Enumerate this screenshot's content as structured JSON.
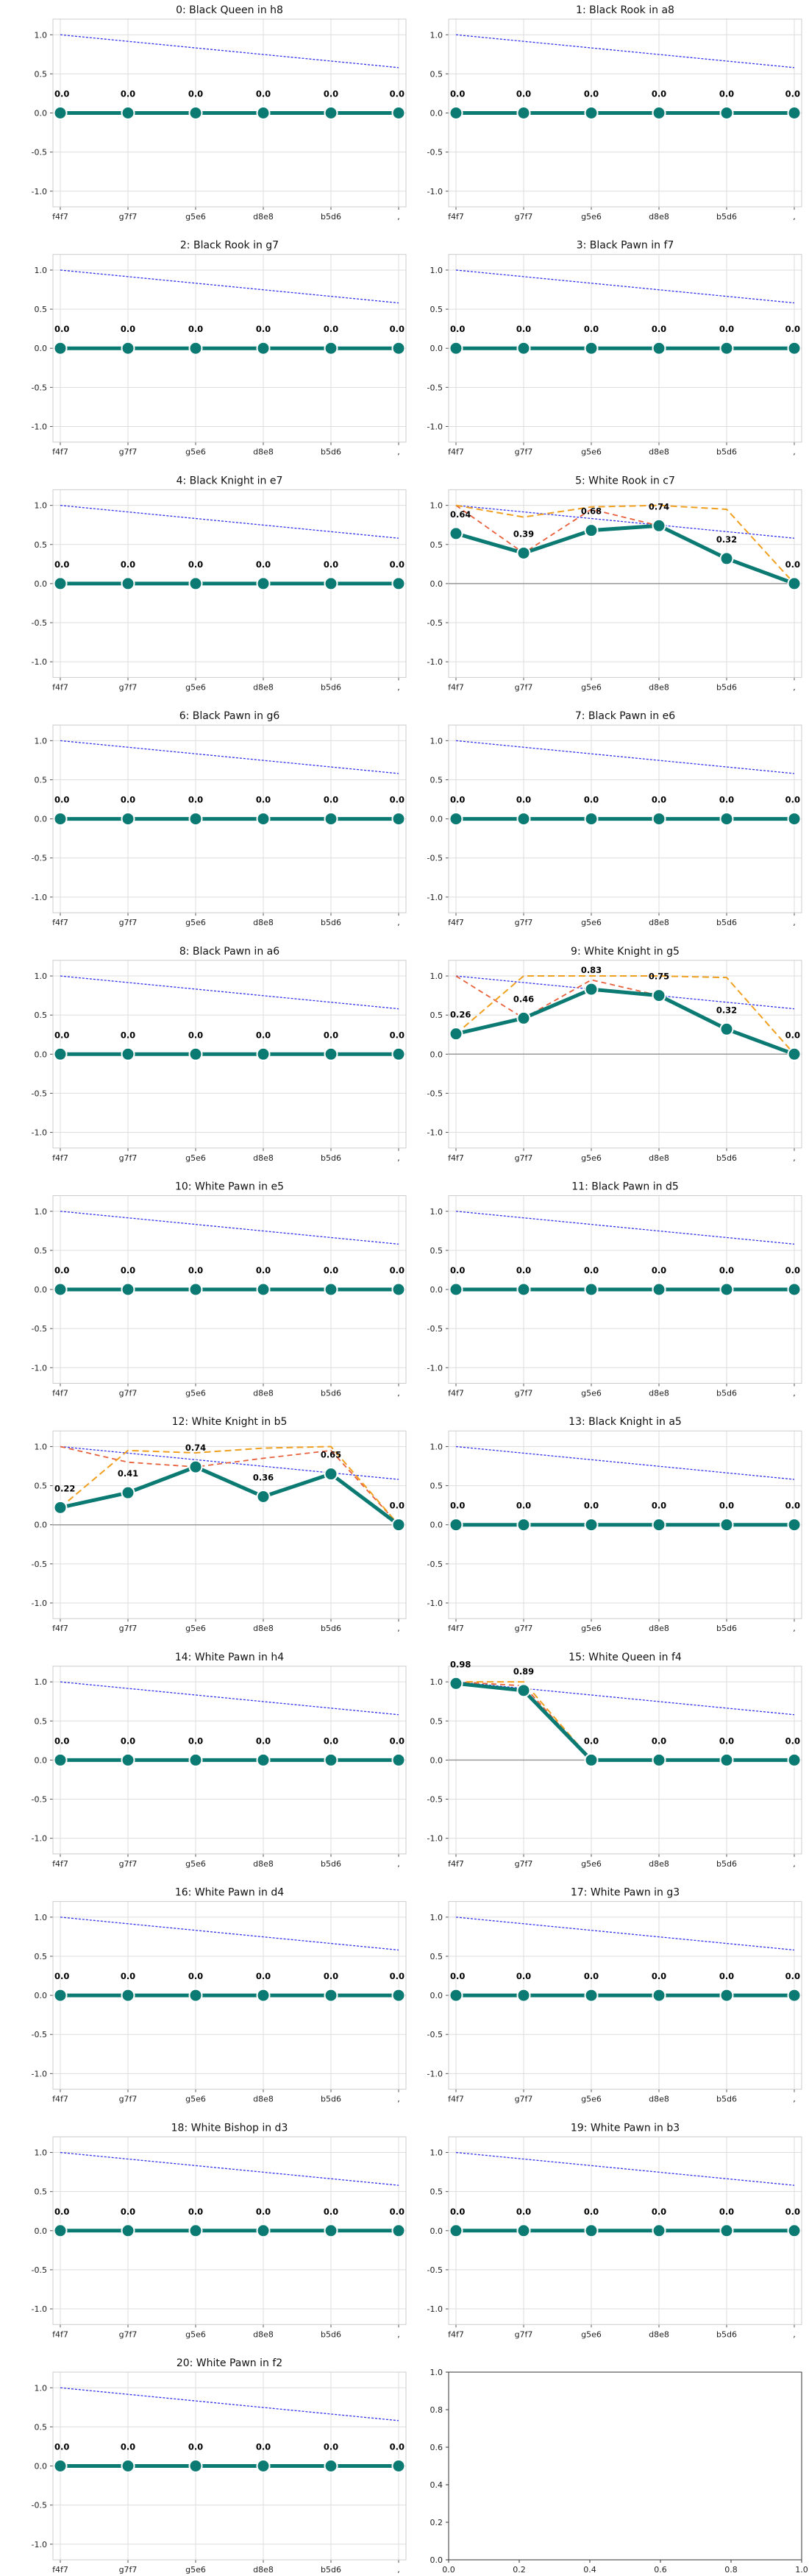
{
  "figure": {
    "empty_panel": {
      "xticks": [
        "0.0",
        "0.2",
        "0.4",
        "0.6",
        "0.8",
        "1.0"
      ],
      "yticks": [
        "0.0",
        "0.2",
        "0.4",
        "0.6",
        "0.8",
        "1.0"
      ]
    }
  },
  "chart_data": [
    {
      "type": "line",
      "title": "0: Black Queen in h8",
      "categories": [
        "f4f7",
        "g7f7",
        "g5e6",
        "d8e8",
        "b5d6",
        ","
      ],
      "ylim": [
        -1.2,
        1.2
      ],
      "yticks": [
        "1.0",
        "0.5",
        "0.0",
        "-0.5",
        "-1.0"
      ],
      "grid": true,
      "values": [
        0.0,
        0.0,
        0.0,
        0.0,
        0.0,
        0.0
      ],
      "labels": [
        "0.0",
        "0.0",
        "0.0",
        "0.0",
        "0.0",
        "0.0"
      ],
      "reference_line": [
        1.0,
        0.58
      ]
    },
    {
      "type": "line",
      "title": "1: Black Rook in a8",
      "categories": [
        "f4f7",
        "g7f7",
        "g5e6",
        "d8e8",
        "b5d6",
        ","
      ],
      "ylim": [
        -1.2,
        1.2
      ],
      "yticks": [
        "1.0",
        "0.5",
        "0.0",
        "-0.5",
        "-1.0"
      ],
      "grid": true,
      "values": [
        0.0,
        0.0,
        0.0,
        0.0,
        0.0,
        0.0
      ],
      "labels": [
        "0.0",
        "0.0",
        "0.0",
        "0.0",
        "0.0",
        "0.0"
      ],
      "reference_line": [
        1.0,
        0.58
      ]
    },
    {
      "type": "line",
      "title": "2: Black Rook in g7",
      "categories": [
        "f4f7",
        "g7f7",
        "g5e6",
        "d8e8",
        "b5d6",
        ","
      ],
      "ylim": [
        -1.2,
        1.2
      ],
      "yticks": [
        "1.0",
        "0.5",
        "0.0",
        "-0.5",
        "-1.0"
      ],
      "grid": true,
      "values": [
        0.0,
        0.0,
        0.0,
        0.0,
        0.0,
        0.0
      ],
      "labels": [
        "0.0",
        "0.0",
        "0.0",
        "0.0",
        "0.0",
        "0.0"
      ],
      "reference_line": [
        1.0,
        0.58
      ]
    },
    {
      "type": "line",
      "title": "3: Black Pawn in f7",
      "categories": [
        "f4f7",
        "g7f7",
        "g5e6",
        "d8e8",
        "b5d6",
        ","
      ],
      "ylim": [
        -1.2,
        1.2
      ],
      "yticks": [
        "1.0",
        "0.5",
        "0.0",
        "-0.5",
        "-1.0"
      ],
      "grid": true,
      "values": [
        0.0,
        0.0,
        0.0,
        0.0,
        0.0,
        0.0
      ],
      "labels": [
        "0.0",
        "0.0",
        "0.0",
        "0.0",
        "0.0",
        "0.0"
      ],
      "reference_line": [
        1.0,
        0.58
      ]
    },
    {
      "type": "line",
      "title": "4: Black Knight in e7",
      "categories": [
        "f4f7",
        "g7f7",
        "g5e6",
        "d8e8",
        "b5d6",
        ","
      ],
      "ylim": [
        -1.2,
        1.2
      ],
      "yticks": [
        "1.0",
        "0.5",
        "0.0",
        "-0.5",
        "-1.0"
      ],
      "grid": true,
      "values": [
        0.0,
        0.0,
        0.0,
        0.0,
        0.0,
        0.0
      ],
      "labels": [
        "0.0",
        "0.0",
        "0.0",
        "0.0",
        "0.0",
        "0.0"
      ],
      "reference_line": [
        1.0,
        0.58
      ]
    },
    {
      "type": "line",
      "title": "5: White Rook in c7",
      "categories": [
        "f4f7",
        "g7f7",
        "g5e6",
        "d8e8",
        "b5d6",
        ","
      ],
      "ylim": [
        -1.2,
        1.2
      ],
      "yticks": [
        "1.0",
        "0.5",
        "0.0",
        "-0.5",
        "-1.0"
      ],
      "grid": true,
      "values": [
        0.64,
        0.39,
        0.68,
        0.74,
        0.32,
        0.0
      ],
      "labels": [
        "0.64",
        "0.39",
        "0.68",
        "0.74",
        "0.32",
        "0.0"
      ],
      "reference_line": [
        1.0,
        0.58
      ],
      "red_dashed": [
        1.0,
        0.39,
        0.95,
        0.74,
        0.32,
        0.0
      ],
      "orange_dashed": [
        1.0,
        0.85,
        0.98,
        1.0,
        0.95,
        0.0
      ]
    },
    {
      "type": "line",
      "title": "6: Black Pawn in g6",
      "categories": [
        "f4f7",
        "g7f7",
        "g5e6",
        "d8e8",
        "b5d6",
        ","
      ],
      "ylim": [
        -1.2,
        1.2
      ],
      "yticks": [
        "1.0",
        "0.5",
        "0.0",
        "-0.5",
        "-1.0"
      ],
      "grid": true,
      "values": [
        0.0,
        0.0,
        0.0,
        0.0,
        0.0,
        0.0
      ],
      "labels": [
        "0.0",
        "0.0",
        "0.0",
        "0.0",
        "0.0",
        "0.0"
      ],
      "reference_line": [
        1.0,
        0.58
      ]
    },
    {
      "type": "line",
      "title": "7: Black Pawn in e6",
      "categories": [
        "f4f7",
        "g7f7",
        "g5e6",
        "d8e8",
        "b5d6",
        ","
      ],
      "ylim": [
        -1.2,
        1.2
      ],
      "yticks": [
        "1.0",
        "0.5",
        "0.0",
        "-0.5",
        "-1.0"
      ],
      "grid": true,
      "values": [
        0.0,
        0.0,
        0.0,
        0.0,
        0.0,
        0.0
      ],
      "labels": [
        "0.0",
        "0.0",
        "0.0",
        "0.0",
        "0.0",
        "0.0"
      ],
      "reference_line": [
        1.0,
        0.58
      ]
    },
    {
      "type": "line",
      "title": "8: Black Pawn in a6",
      "categories": [
        "f4f7",
        "g7f7",
        "g5e6",
        "d8e8",
        "b5d6",
        ","
      ],
      "ylim": [
        -1.2,
        1.2
      ],
      "yticks": [
        "1.0",
        "0.5",
        "0.0",
        "-0.5",
        "-1.0"
      ],
      "grid": true,
      "values": [
        0.0,
        0.0,
        0.0,
        0.0,
        0.0,
        0.0
      ],
      "labels": [
        "0.0",
        "0.0",
        "0.0",
        "0.0",
        "0.0",
        "0.0"
      ],
      "reference_line": [
        1.0,
        0.58
      ]
    },
    {
      "type": "line",
      "title": "9: White Knight in g5",
      "categories": [
        "f4f7",
        "g7f7",
        "g5e6",
        "d8e8",
        "b5d6",
        ","
      ],
      "ylim": [
        -1.2,
        1.2
      ],
      "yticks": [
        "1.0",
        "0.5",
        "0.0",
        "-0.5",
        "-1.0"
      ],
      "grid": true,
      "values": [
        0.26,
        0.46,
        0.83,
        0.75,
        0.32,
        0.0
      ],
      "labels": [
        "0.26",
        "0.46",
        "0.83",
        "0.75",
        "0.32",
        "0.0"
      ],
      "reference_line": [
        1.0,
        0.58
      ],
      "red_dashed": [
        1.0,
        0.46,
        0.95,
        0.75,
        0.32,
        0.0
      ],
      "orange_dashed": [
        0.26,
        1.0,
        1.0,
        1.0,
        0.98,
        0.0
      ]
    },
    {
      "type": "line",
      "title": "10: White Pawn in e5",
      "categories": [
        "f4f7",
        "g7f7",
        "g5e6",
        "d8e8",
        "b5d6",
        ","
      ],
      "ylim": [
        -1.2,
        1.2
      ],
      "yticks": [
        "1.0",
        "0.5",
        "0.0",
        "-0.5",
        "-1.0"
      ],
      "grid": true,
      "values": [
        0.0,
        0.0,
        0.0,
        0.0,
        0.0,
        0.0
      ],
      "labels": [
        "0.0",
        "0.0",
        "0.0",
        "0.0",
        "0.0",
        "0.0"
      ],
      "reference_line": [
        1.0,
        0.58
      ]
    },
    {
      "type": "line",
      "title": "11: Black Pawn in d5",
      "categories": [
        "f4f7",
        "g7f7",
        "g5e6",
        "d8e8",
        "b5d6",
        ","
      ],
      "ylim": [
        -1.2,
        1.2
      ],
      "yticks": [
        "1.0",
        "0.5",
        "0.0",
        "-0.5",
        "-1.0"
      ],
      "grid": true,
      "values": [
        0.0,
        0.0,
        0.0,
        0.0,
        0.0,
        0.0
      ],
      "labels": [
        "0.0",
        "0.0",
        "0.0",
        "0.0",
        "0.0",
        "0.0"
      ],
      "reference_line": [
        1.0,
        0.58
      ]
    },
    {
      "type": "line",
      "title": "12: White Knight in b5",
      "categories": [
        "f4f7",
        "g7f7",
        "g5e6",
        "d8e8",
        "b5d6",
        ","
      ],
      "ylim": [
        -1.2,
        1.2
      ],
      "yticks": [
        "1.0",
        "0.5",
        "0.0",
        "-0.5",
        "-1.0"
      ],
      "grid": true,
      "values": [
        0.22,
        0.41,
        0.74,
        0.36,
        0.65,
        0.0
      ],
      "labels": [
        "0.22",
        "0.41",
        "0.74",
        "0.36",
        "0.65",
        "0.0"
      ],
      "reference_line": [
        1.0,
        0.58
      ],
      "red_dashed": [
        1.0,
        0.8,
        0.74,
        0.85,
        0.95,
        0.0
      ],
      "orange_dashed": [
        0.22,
        0.95,
        0.92,
        0.98,
        1.0,
        0.0
      ]
    },
    {
      "type": "line",
      "title": "13: Black Knight in a5",
      "categories": [
        "f4f7",
        "g7f7",
        "g5e6",
        "d8e8",
        "b5d6",
        ","
      ],
      "ylim": [
        -1.2,
        1.2
      ],
      "yticks": [
        "1.0",
        "0.5",
        "0.0",
        "-0.5",
        "-1.0"
      ],
      "grid": true,
      "values": [
        0.0,
        0.0,
        0.0,
        0.0,
        0.0,
        0.0
      ],
      "labels": [
        "0.0",
        "0.0",
        "0.0",
        "0.0",
        "0.0",
        "0.0"
      ],
      "reference_line": [
        1.0,
        0.58
      ]
    },
    {
      "type": "line",
      "title": "14: White Pawn in h4",
      "categories": [
        "f4f7",
        "g7f7",
        "g5e6",
        "d8e8",
        "b5d6",
        ","
      ],
      "ylim": [
        -1.2,
        1.2
      ],
      "yticks": [
        "1.0",
        "0.5",
        "0.0",
        "-0.5",
        "-1.0"
      ],
      "grid": true,
      "values": [
        0.0,
        0.0,
        0.0,
        0.0,
        0.0,
        0.0
      ],
      "labels": [
        "0.0",
        "0.0",
        "0.0",
        "0.0",
        "0.0",
        "0.0"
      ],
      "reference_line": [
        1.0,
        0.58
      ]
    },
    {
      "type": "line",
      "title": "15: White Queen in f4",
      "categories": [
        "f4f7",
        "g7f7",
        "g5e6",
        "d8e8",
        "b5d6",
        ","
      ],
      "ylim": [
        -1.2,
        1.2
      ],
      "yticks": [
        "1.0",
        "0.5",
        "0.0",
        "-0.5",
        "-1.0"
      ],
      "grid": true,
      "values": [
        0.98,
        0.89,
        0.0,
        0.0,
        0.0,
        0.0
      ],
      "labels": [
        "0.98",
        "0.89",
        "0.0",
        "0.0",
        "0.0",
        "0.0"
      ],
      "reference_line": [
        1.0,
        0.58
      ],
      "red_dashed": [
        1.0,
        0.95,
        0.0,
        0.0,
        0.0,
        0.0
      ],
      "orange_dashed": [
        1.0,
        1.0,
        0.0,
        0.0,
        0.0,
        0.0
      ]
    },
    {
      "type": "line",
      "title": "16: White Pawn in d4",
      "categories": [
        "f4f7",
        "g7f7",
        "g5e6",
        "d8e8",
        "b5d6",
        ","
      ],
      "ylim": [
        -1.2,
        1.2
      ],
      "yticks": [
        "1.0",
        "0.5",
        "0.0",
        "-0.5",
        "-1.0"
      ],
      "grid": true,
      "values": [
        0.0,
        0.0,
        0.0,
        0.0,
        0.0,
        0.0
      ],
      "labels": [
        "0.0",
        "0.0",
        "0.0",
        "0.0",
        "0.0",
        "0.0"
      ],
      "reference_line": [
        1.0,
        0.58
      ]
    },
    {
      "type": "line",
      "title": "17: White Pawn in g3",
      "categories": [
        "f4f7",
        "g7f7",
        "g5e6",
        "d8e8",
        "b5d6",
        ","
      ],
      "ylim": [
        -1.2,
        1.2
      ],
      "yticks": [
        "1.0",
        "0.5",
        "0.0",
        "-0.5",
        "-1.0"
      ],
      "grid": true,
      "values": [
        0.0,
        0.0,
        0.0,
        0.0,
        0.0,
        0.0
      ],
      "labels": [
        "0.0",
        "0.0",
        "0.0",
        "0.0",
        "0.0",
        "0.0"
      ],
      "reference_line": [
        1.0,
        0.58
      ]
    },
    {
      "type": "line",
      "title": "18: White Bishop in d3",
      "categories": [
        "f4f7",
        "g7f7",
        "g5e6",
        "d8e8",
        "b5d6",
        ","
      ],
      "ylim": [
        -1.2,
        1.2
      ],
      "yticks": [
        "1.0",
        "0.5",
        "0.0",
        "-0.5",
        "-1.0"
      ],
      "grid": true,
      "values": [
        0.0,
        0.0,
        0.0,
        0.0,
        0.0,
        0.0
      ],
      "labels": [
        "0.0",
        "0.0",
        "0.0",
        "0.0",
        "0.0",
        "0.0"
      ],
      "reference_line": [
        1.0,
        0.58
      ]
    },
    {
      "type": "line",
      "title": "19: White Pawn in b3",
      "categories": [
        "f4f7",
        "g7f7",
        "g5e6",
        "d8e8",
        "b5d6",
        ","
      ],
      "ylim": [
        -1.2,
        1.2
      ],
      "yticks": [
        "1.0",
        "0.5",
        "0.0",
        "-0.5",
        "-1.0"
      ],
      "grid": true,
      "values": [
        0.0,
        0.0,
        0.0,
        0.0,
        0.0,
        0.0
      ],
      "labels": [
        "0.0",
        "0.0",
        "0.0",
        "0.0",
        "0.0",
        "0.0"
      ],
      "reference_line": [
        1.0,
        0.58
      ]
    },
    {
      "type": "line",
      "title": "20: White Pawn in f2",
      "categories": [
        "f4f7",
        "g7f7",
        "g5e6",
        "d8e8",
        "b5d6",
        ","
      ],
      "ylim": [
        -1.2,
        1.2
      ],
      "yticks": [
        "1.0",
        "0.5",
        "0.0",
        "-0.5",
        "-1.0"
      ],
      "grid": true,
      "values": [
        0.0,
        0.0,
        0.0,
        0.0,
        0.0,
        0.0
      ],
      "labels": [
        "0.0",
        "0.0",
        "0.0",
        "0.0",
        "0.0",
        "0.0"
      ],
      "reference_line": [
        1.0,
        0.58
      ]
    }
  ]
}
